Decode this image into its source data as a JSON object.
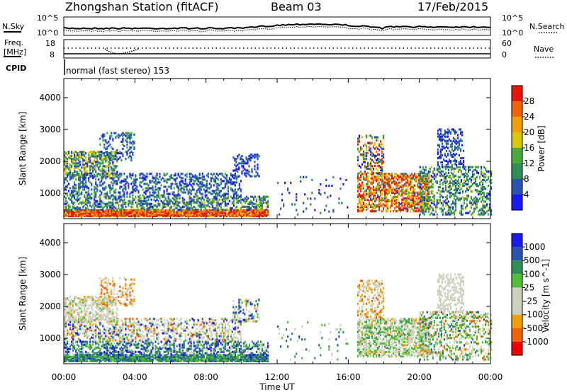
{
  "header": {
    "station": "Zhongshan Station (fitACF)",
    "beam": "Beam 03",
    "date": "17/Feb/2015"
  },
  "panels": {
    "nsky_label": "N.Sky",
    "nsearch_label": "N.Search",
    "freq_label_line1": "Freq.",
    "freq_label_line2": "[MHz]",
    "nave_label": "Nave",
    "cpid_label": "CPID",
    "cpid_text": "normal (fast stereo) 153",
    "nsky_ticks": [
      "10^5",
      "10^0"
    ],
    "nsearch_ticks": [
      "10^5",
      "10^0"
    ],
    "freq_ticks": [
      "18",
      "8"
    ],
    "nave_ticks": [
      "60",
      "0"
    ]
  },
  "colors": {
    "power_scale": [
      "#1a1af0",
      "#2a52b4",
      "#2f8f55",
      "#4aab3c",
      "#d8c800",
      "#f0a000",
      "#f06400",
      "#e81400"
    ],
    "velocity_scale": [
      "#ee0000",
      "#f06400",
      "#f0a000",
      "#cfcfbf",
      "#cfcfbf",
      "#4fbf3a",
      "#2f8f55",
      "#2a52b4",
      "#1a1af0"
    ]
  },
  "chart_data": [
    {
      "type": "heatmap",
      "quantity": "Power",
      "ylabel": "Slant Range [km]",
      "xlabel": "Time UT",
      "x_ticks": [
        "00:00",
        "04:00",
        "08:00",
        "12:00",
        "16:00",
        "20:00",
        "00:00"
      ],
      "y_ticks": [
        1000,
        2000,
        3000,
        4000
      ],
      "ylim": [
        200,
        4600
      ],
      "colorbar_label": "Power [dB]",
      "colorbar_ticks": [
        "28",
        "24",
        "20",
        "16",
        "12",
        "8",
        "4"
      ],
      "colorbar_range": [
        0,
        32
      ]
    },
    {
      "type": "heatmap",
      "quantity": "Velocity",
      "ylabel": "Slant Range [km]",
      "xlabel": "Time UT",
      "x_ticks": [
        "00:00",
        "04:00",
        "08:00",
        "12:00",
        "16:00",
        "20:00",
        "00:00"
      ],
      "y_ticks": [
        1000,
        2000,
        3000,
        4000
      ],
      "ylim": [
        200,
        4600
      ],
      "colorbar_label": "Velocity [m s^-1]",
      "colorbar_ticks": [
        "1000",
        "500",
        "100",
        "25",
        "-25",
        "-100",
        "-500",
        "-1000"
      ]
    }
  ]
}
